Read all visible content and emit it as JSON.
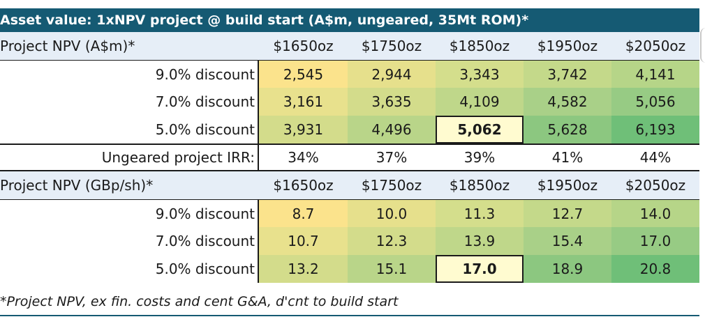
{
  "title": "Asset value: 1xNPV project @ build start (A$m, ungeared, 35Mt ROM)*",
  "price_headers": [
    "$1650oz",
    "$1750oz",
    "$1850oz",
    "$1950oz",
    "$2050oz"
  ],
  "section_amd": {
    "header": "Project NPV (A$m)*",
    "rows": [
      {
        "label": "9.0% discount",
        "values": [
          "2,545",
          "2,944",
          "3,343",
          "3,742",
          "4,141"
        ]
      },
      {
        "label": "7.0% discount",
        "values": [
          "3,161",
          "3,635",
          "4,109",
          "4,582",
          "5,056"
        ]
      },
      {
        "label": "5.0% discount",
        "values": [
          "3,931",
          "4,496",
          "5,062",
          "5,628",
          "6,193"
        ]
      }
    ]
  },
  "irr": {
    "label": "Ungeared project IRR:",
    "values": [
      "34%",
      "37%",
      "39%",
      "41%",
      "44%"
    ]
  },
  "section_gbp": {
    "header": "Project NPV (GBp/sh)*",
    "rows": [
      {
        "label": "9.0% discount",
        "values": [
          "8.7",
          "10.0",
          "11.3",
          "12.7",
          "14.0"
        ]
      },
      {
        "label": "7.0% discount",
        "values": [
          "10.7",
          "12.3",
          "13.9",
          "15.4",
          "17.0"
        ]
      },
      {
        "label": "5.0% discount",
        "values": [
          "13.2",
          "15.1",
          "17.0",
          "18.9",
          "20.8"
        ]
      }
    ]
  },
  "footnote": "*Project NPV, ex fin. costs and cent G&A, d'cnt to build start",
  "colors": {
    "title_bg": "#155a73",
    "header_bg": "#e6eef7",
    "heat_low": "#fde78e",
    "heat_high": "#6fbf78",
    "highlight": "#fffbd0"
  },
  "heat_colors": {
    "row1": [
      "#fbe38c",
      "#e6e08c",
      "#d4de8c",
      "#c4d98a",
      "#b6d588"
    ],
    "row2": [
      "#e8e18d",
      "#d3dc8b",
      "#bfd78a",
      "#a9d088",
      "#97cb84"
    ],
    "row3": [
      "#d3dc8b",
      "#b9d589",
      "#fffbd0",
      "#8cc780",
      "#6fbf78"
    ]
  }
}
